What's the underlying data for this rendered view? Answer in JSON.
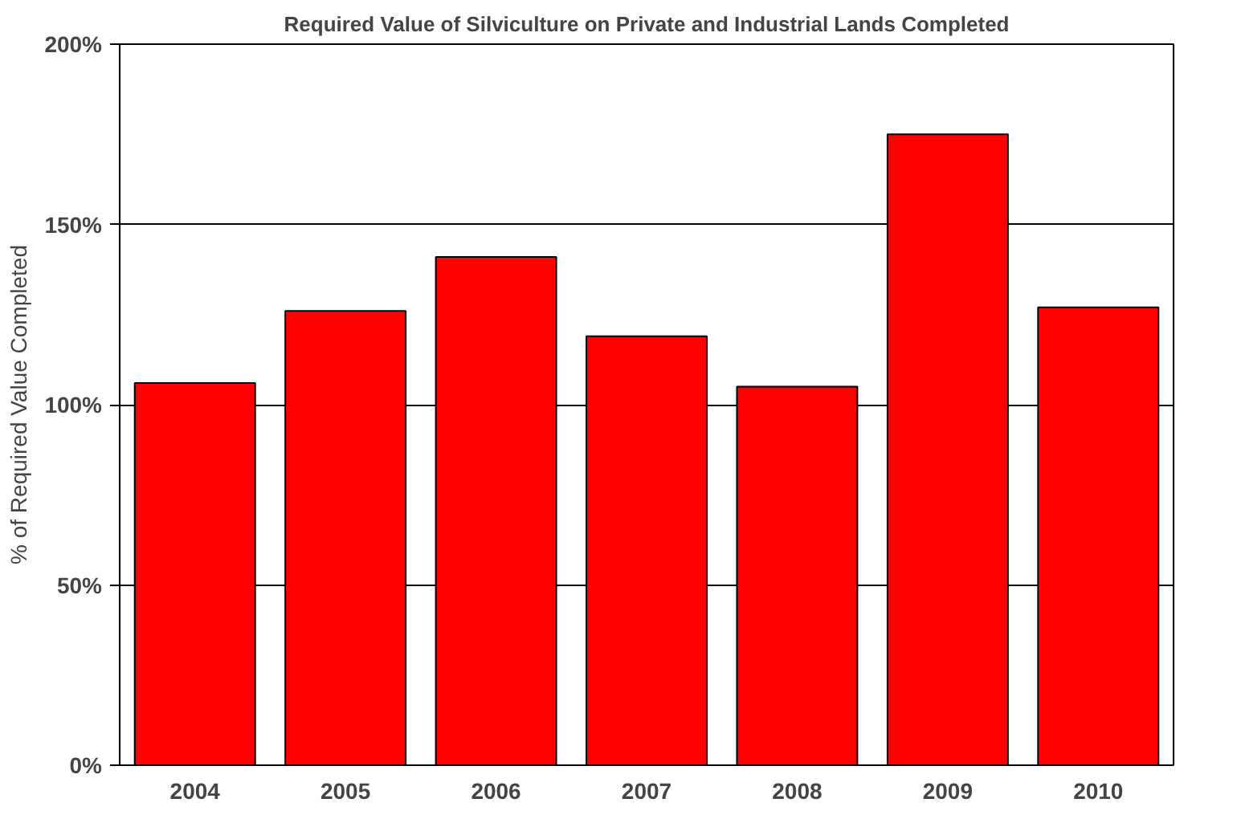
{
  "chart_data": {
    "type": "bar",
    "title": "Required Value of Silviculture on Private and Industrial Lands Completed",
    "ylabel": "% of Required Value Completed",
    "categories": [
      "2004",
      "2005",
      "2006",
      "2007",
      "2008",
      "2009",
      "2010"
    ],
    "values": [
      106,
      126,
      141,
      119,
      105,
      175,
      127
    ],
    "color": "#ff0000",
    "ylim": [
      0,
      200
    ],
    "yticks": [
      {
        "value": 0,
        "label": "0%"
      },
      {
        "value": 50,
        "label": "50%"
      },
      {
        "value": 100,
        "label": "100%"
      },
      {
        "value": 150,
        "label": "150%"
      },
      {
        "value": 200,
        "label": "200%"
      }
    ],
    "grid": "y"
  }
}
